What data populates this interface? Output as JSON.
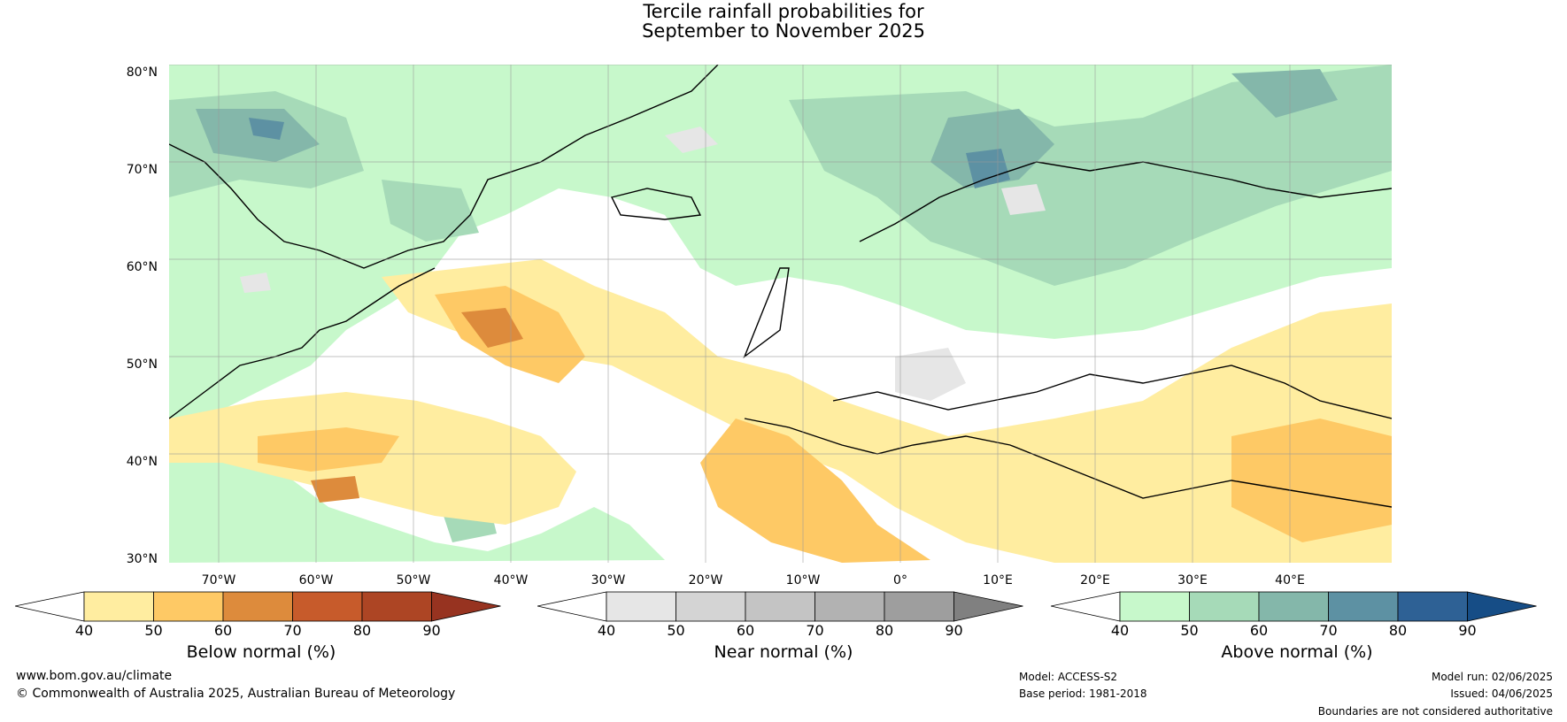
{
  "title_line1": "Tercile rainfall probabilities for",
  "title_line2": "September to November 2025",
  "lat_labels": [
    "80°N",
    "70°N",
    "60°N",
    "50°N",
    "40°N",
    "30°N"
  ],
  "lon_labels": [
    "70°W",
    "60°W",
    "50°W",
    "40°W",
    "30°W",
    "20°W",
    "10°W",
    "0°",
    "10°E",
    "20°E",
    "30°E",
    "40°E"
  ],
  "colorbars": {
    "below": {
      "label": "Below normal (%)",
      "ticks": [
        "40",
        "50",
        "60",
        "70",
        "80",
        "90"
      ],
      "colors": [
        "#ffffff",
        "#ffeda0",
        "#fec965",
        "#dd8b3c",
        "#c75b2b",
        "#ad4524",
        "#973320"
      ]
    },
    "near": {
      "label": "Near normal (%)",
      "ticks": [
        "40",
        "50",
        "60",
        "70",
        "80",
        "90"
      ],
      "colors": [
        "#ffffff",
        "#e6e6e6",
        "#d4d4d4",
        "#c4c4c4",
        "#b2b2b2",
        "#9e9e9e",
        "#808080"
      ]
    },
    "above": {
      "label": "Above normal (%)",
      "ticks": [
        "40",
        "50",
        "60",
        "70",
        "80",
        "90"
      ],
      "colors": [
        "#ffffff",
        "#c7f8cb",
        "#a6dab8",
        "#84b7aa",
        "#5d91a3",
        "#2e6195",
        "#164d86"
      ]
    }
  },
  "footer": {
    "website": "www.bom.gov.au/climate",
    "copyright": "© Commonwealth of Australia 2025, Australian Bureau of Meteorology",
    "model": "Model: ACCESS-S2",
    "base_period": "Base period: 1981-2018",
    "model_run": "Model run: 02/06/2025",
    "issued": "Issued: 04/06/2025",
    "disclaimer": "Boundaries are not considered authoritative"
  }
}
